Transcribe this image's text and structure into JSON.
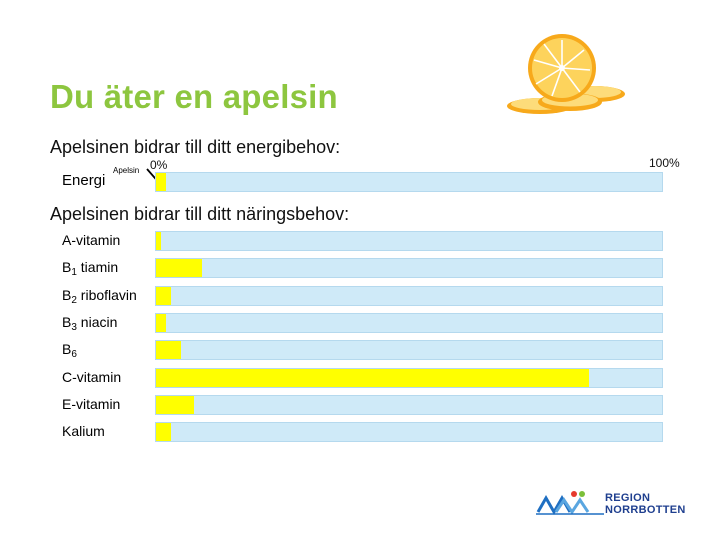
{
  "title": "Du äter en apelsin",
  "energy_section": {
    "heading": "Apelsinen bidrar till ditt energibehov:",
    "row_label": "Energi",
    "annotation": "Apelsin",
    "tick_start": "0%",
    "tick_end": "100%",
    "percent": 2
  },
  "nutrient_section": {
    "heading": "Apelsinen bidrar till ditt näringsbehov:",
    "rows": [
      {
        "label": "A-vitamin",
        "sub": "",
        "suffix": "",
        "percent": 1
      },
      {
        "label": "B",
        "sub": "1",
        "suffix": " tiamin",
        "percent": 9
      },
      {
        "label": "B",
        "sub": "2",
        "suffix": " riboflavin",
        "percent": 3
      },
      {
        "label": "B",
        "sub": "3",
        "suffix": " niacin",
        "percent": 2
      },
      {
        "label": "B",
        "sub": "6",
        "suffix": "",
        "percent": 5
      },
      {
        "label": "C-vitamin",
        "sub": "",
        "suffix": "",
        "percent": 85.5
      },
      {
        "label": "E-vitamin",
        "sub": "",
        "suffix": "",
        "percent": 7.5
      },
      {
        "label": "Kalium",
        "sub": "",
        "suffix": "",
        "percent": 3
      }
    ]
  },
  "colors": {
    "title": "#8dc63f",
    "bar_fill": "#ffff00",
    "bar_track": "#cfeaf8"
  },
  "logo": {
    "line1": "REGION",
    "line2": "NORRBOTTEN"
  },
  "icons": [
    "orange-slices-illustration",
    "arrow-icon",
    "region-norrbotten-logo"
  ]
}
